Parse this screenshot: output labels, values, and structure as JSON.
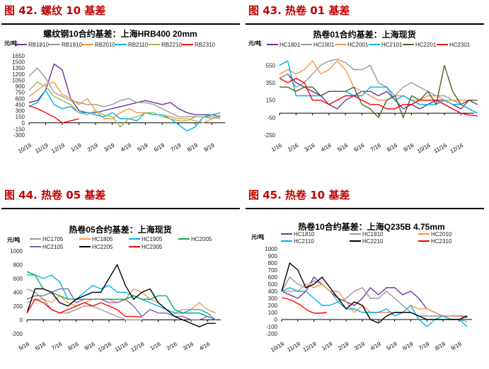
{
  "charts_meta": [
    {
      "section_title": "图 42. 螺纹 10 基差"
    },
    {
      "section_title": "图 43. 热卷 01 基差"
    },
    {
      "section_title": "图 44. 热卷 05 基差"
    },
    {
      "section_title": "图 45. 热卷 10 基差"
    }
  ],
  "chart_data": [
    {
      "type": "line",
      "title": "螺纹钢10合约基差：上海HRB400 20mm",
      "ylabel": "元/吨",
      "ylim": [
        -300,
        1650
      ],
      "yticks": [
        1650,
        1500,
        1350,
        1200,
        1050,
        900,
        750,
        600,
        450,
        300,
        150,
        0,
        -150,
        -300
      ],
      "xticks": [
        "10/19",
        "11/19",
        "12/19",
        "1/19",
        "2/19",
        "3/19",
        "4/19",
        "5/19",
        "6/19",
        "7/19",
        "8/19",
        "9/19"
      ],
      "x_step_months": 0.5,
      "series": [
        {
          "name": "RB1810",
          "color": "#7030a0",
          "values": [
            500,
            550,
            800,
            1450,
            1300,
            600,
            300,
            250,
            250,
            300,
            350,
            400,
            450,
            500,
            550,
            500,
            450,
            500,
            350,
            250,
            200,
            200,
            200,
            150
          ]
        },
        {
          "name": "RB1910",
          "color": "#9a9a9a",
          "values": [
            1150,
            1350,
            1100,
            750,
            650,
            550,
            500,
            450,
            450,
            400,
            450,
            550,
            600,
            500,
            500,
            450,
            350,
            250,
            150,
            150,
            150,
            150,
            150,
            100
          ]
        },
        {
          "name": "RB2010",
          "color": "#f79646",
          "values": [
            650,
            800,
            950,
            1000,
            700,
            600,
            450,
            600,
            300,
            100,
            100,
            250,
            350,
            250,
            250,
            200,
            200,
            150,
            100,
            100,
            50,
            0,
            100,
            200
          ]
        },
        {
          "name": "RB2110",
          "color": "#00b0f0",
          "values": [
            400,
            500,
            800,
            450,
            350,
            400,
            250,
            250,
            200,
            150,
            250,
            100,
            100,
            50,
            250,
            200,
            200,
            100,
            -50,
            -200,
            -100,
            150,
            200,
            250
          ]
        },
        {
          "name": "RB2210",
          "color": "#9bbb59",
          "values": [
            800,
            1000,
            900,
            650,
            550,
            450,
            250,
            200,
            300,
            200,
            150,
            -100,
            100,
            150,
            250,
            250,
            150,
            100,
            50,
            50,
            150,
            150,
            100,
            150
          ]
        },
        {
          "name": "RB2310",
          "color": "#ff0000",
          "values": [
            420,
            350,
            250,
            150,
            0,
            50,
            100
          ]
        }
      ]
    },
    {
      "type": "line",
      "title": "热卷01合约基差：上海现货",
      "ylabel": "元/吨",
      "ylim": [
        -250,
        650
      ],
      "yticks": [
        550,
        350,
        150,
        -50,
        -250
      ],
      "xticks": [
        "1/16",
        "2/16",
        "3/16",
        "4/16",
        "5/16",
        "6/16",
        "7/16",
        "8/16",
        "9/16",
        "10/16",
        "11/16",
        "12/16"
      ],
      "x_step_months": 0.5,
      "series": [
        {
          "name": "HC1801",
          "color": "#7030a0",
          "values": [
            400,
            450,
            350,
            300,
            250,
            200,
            100,
            50,
            150,
            200,
            250,
            250,
            200,
            250,
            150,
            50,
            100,
            50,
            100,
            150,
            150,
            100,
            50,
            150,
            100
          ]
        },
        {
          "name": "HC1901",
          "color": "#9a9a9a",
          "values": [
            400,
            450,
            300,
            350,
            450,
            550,
            600,
            620,
            580,
            500,
            500,
            550,
            350,
            300,
            200,
            300,
            350,
            300,
            250,
            200,
            200,
            150,
            100,
            50,
            0
          ]
        },
        {
          "name": "HC2001",
          "color": "#f79646",
          "values": [
            450,
            500,
            450,
            500,
            600,
            450,
            500,
            600,
            500,
            300,
            250,
            200,
            150,
            150,
            200,
            200,
            150,
            150,
            200,
            200,
            150,
            150,
            150,
            150,
            150
          ]
        },
        {
          "name": "HC2101",
          "color": "#00b0f0",
          "values": [
            550,
            600,
            200,
            200,
            200,
            200,
            250,
            250,
            250,
            200,
            200,
            300,
            300,
            300,
            150,
            200,
            150,
            100,
            100,
            100,
            150,
            100,
            100,
            50,
            0
          ]
        },
        {
          "name": "HC2201",
          "color": "#4f6228",
          "values": [
            300,
            300,
            250,
            300,
            300,
            200,
            250,
            250,
            250,
            300,
            100,
            50,
            -50,
            150,
            200,
            -50,
            200,
            150,
            250,
            100,
            550,
            250,
            100,
            150,
            150
          ]
        },
        {
          "name": "HC2301",
          "color": "#ff0000",
          "values": [
            400,
            350,
            400,
            350,
            150,
            150,
            100,
            150,
            200,
            200,
            150,
            100,
            100,
            50,
            50,
            100,
            100,
            150,
            150,
            150,
            100,
            50,
            0,
            -20,
            -30
          ]
        }
      ]
    },
    {
      "type": "line",
      "title": "热卷05合约基差：上海现货",
      "ylabel": "元/吨",
      "ylim": [
        -200,
        1000
      ],
      "yticks": [
        1000,
        800,
        600,
        400,
        200,
        0,
        -200
      ],
      "xticks": [
        "5/16",
        "6/16",
        "7/16",
        "8/16",
        "9/16",
        "10/16",
        "11/16",
        "12/16",
        "1/16",
        "2/16",
        "3/16",
        "4/16"
      ],
      "x_step_months": 0.5,
      "series": [
        {
          "name": "HC1705",
          "color": "#9a9a9a",
          "values": [
            450,
            400,
            300,
            150,
            100,
            100,
            150,
            200,
            200,
            150,
            100,
            50,
            0,
            0,
            0
          ]
        },
        {
          "name": "HC1805",
          "color": "#f79646",
          "values": [
            250,
            300,
            300,
            250,
            350,
            250,
            200,
            250,
            300,
            300,
            300,
            250,
            300,
            450,
            400,
            300,
            250,
            150,
            100,
            150,
            150,
            250,
            150,
            100
          ]
        },
        {
          "name": "HC1905",
          "color": "#00b0f0",
          "values": [
            650,
            650,
            600,
            650,
            550,
            300,
            300,
            400,
            500,
            450,
            500,
            400,
            400,
            350,
            300,
            250,
            200,
            150,
            100,
            100,
            150,
            150,
            100,
            0
          ]
        },
        {
          "name": "HC2005",
          "color": "#00b050",
          "values": [
            700,
            650,
            450,
            400,
            350,
            300,
            300,
            300,
            300,
            300,
            300,
            300,
            300,
            350,
            300,
            300,
            350,
            350,
            150,
            100,
            100,
            100,
            50,
            0
          ]
        },
        {
          "name": "HC2105",
          "color": "#8064a2",
          "values": [
            300,
            350,
            350,
            400,
            450,
            450,
            250,
            300,
            300,
            300,
            250,
            250,
            300,
            200,
            50,
            150,
            100,
            100,
            50,
            50,
            0,
            0,
            50,
            0
          ]
        },
        {
          "name": "HC2205",
          "color": "#000000",
          "values": [
            100,
            450,
            450,
            400,
            250,
            200,
            300,
            350,
            400,
            400,
            600,
            800,
            500,
            300,
            400,
            450,
            250,
            150,
            50,
            0,
            -50,
            -100,
            -50,
            -50
          ]
        },
        {
          "name": "HC2305",
          "color": "#ff0000",
          "values": [
            100,
            300,
            250,
            150,
            100,
            150,
            200,
            250,
            200,
            250,
            200,
            150,
            50,
            50,
            40
          ]
        }
      ]
    },
    {
      "type": "line",
      "title": "热卷10合约基差：上海Q235B 4.75mm",
      "ylabel": "元/吨",
      "ylim": [
        -200,
        1000
      ],
      "yticks": [
        1000,
        900,
        800,
        700,
        600,
        500,
        400,
        300,
        200,
        100,
        0,
        -100,
        -200
      ],
      "xticks": [
        "10/19",
        "11/19",
        "12/19",
        "1/19",
        "2/19",
        "3/19",
        "4/19",
        "5/19",
        "6/19",
        "7/19",
        "8/19",
        "9/19"
      ],
      "x_step_months": 0.5,
      "series": [
        {
          "name": "HC1810",
          "color": "#7030a0",
          "values": [
            400,
            350,
            300,
            400,
            600,
            500,
            400,
            300,
            250,
            200,
            300,
            450,
            350,
            450,
            450,
            350,
            400,
            300,
            150,
            100,
            50,
            50,
            50,
            30
          ]
        },
        {
          "name": "HC1910",
          "color": "#9a9a9a",
          "values": [
            400,
            600,
            500,
            450,
            550,
            500,
            400,
            250,
            300,
            400,
            450,
            300,
            300,
            400,
            300,
            200,
            100,
            50,
            50,
            50,
            50,
            0,
            0,
            -30
          ]
        },
        {
          "name": "HC2010",
          "color": "#f79646",
          "values": [
            400,
            400,
            400,
            500,
            450,
            500,
            400,
            400,
            250,
            100,
            200,
            100,
            100,
            100,
            100,
            100,
            200,
            150,
            150,
            100,
            50,
            50,
            50,
            50
          ]
        },
        {
          "name": "HC2110",
          "color": "#00b0f0",
          "values": [
            400,
            450,
            400,
            400,
            300,
            200,
            200,
            250,
            150,
            150,
            100,
            100,
            100,
            150,
            50,
            100,
            200,
            0,
            -100,
            0,
            50,
            0,
            0,
            -100
          ]
        },
        {
          "name": "HC2210",
          "color": "#000000",
          "values": [
            400,
            800,
            700,
            450,
            500,
            600,
            450,
            300,
            150,
            250,
            200,
            0,
            -50,
            50,
            100,
            100,
            100,
            50,
            0,
            0,
            0,
            0,
            0,
            50
          ]
        },
        {
          "name": "HC2310",
          "color": "#ff0000",
          "values": [
            310,
            290,
            250,
            200,
            130,
            90,
            90,
            100
          ]
        }
      ]
    }
  ]
}
